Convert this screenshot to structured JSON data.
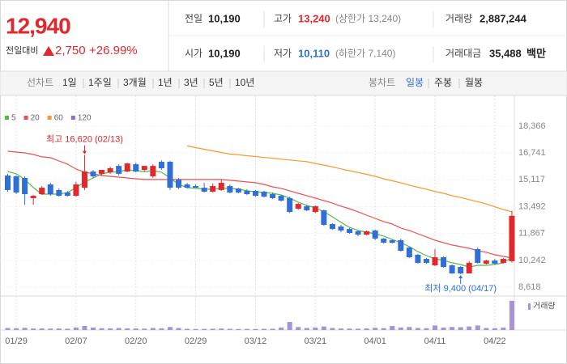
{
  "header": {
    "price": "12,940",
    "change_label": "전일대비",
    "change": "2,750",
    "change_pct": "+26.99%"
  },
  "stats": {
    "rows": [
      [
        {
          "label": "전일",
          "value": "10,190"
        },
        {
          "label": "고가",
          "value": "13,240",
          "note": "(상한가 13,240)"
        },
        {
          "label": "거래량",
          "value": "2,887,244"
        }
      ],
      [
        {
          "label": "시가",
          "value": "10,190"
        },
        {
          "label": "저가",
          "value": "10,110",
          "note": "(하한가 7,140)"
        },
        {
          "label": "거래대금",
          "value": "35,488",
          "unit": "백만"
        }
      ]
    ]
  },
  "tabs": {
    "line_label": "선차트",
    "line_periods": [
      "1일",
      "1주일",
      "3개월",
      "1년",
      "3년",
      "5년",
      "10년"
    ],
    "candle_label": "봉차트",
    "candle_periods": [
      "일봉",
      "주봉",
      "월봉"
    ],
    "selected": "일봉"
  },
  "chart_data": {
    "type": "candlestick",
    "categories": [
      null,
      "01/29",
      null,
      null,
      null,
      null,
      null,
      null,
      "02/07",
      null,
      null,
      null,
      null,
      null,
      null,
      "02/20",
      null,
      null,
      null,
      null,
      null,
      null,
      "02/29",
      null,
      null,
      null,
      null,
      null,
      null,
      "03/12",
      null,
      null,
      null,
      null,
      null,
      null,
      "03/21",
      null,
      null,
      null,
      null,
      null,
      null,
      "04/01",
      null,
      null,
      null,
      null,
      null,
      null,
      "04/11",
      null,
      null,
      null,
      null,
      null,
      null,
      "04/22",
      null,
      null
    ],
    "open": [
      15380,
      15330,
      15230,
      14010,
      14250,
      14840,
      14500,
      14350,
      14150,
      14640,
      15620,
      15480,
      15570,
      15960,
      15620,
      16060,
      15720,
      15330,
      16210,
      16210,
      15130,
      14840,
      14740,
      14640,
      14400,
      14500,
      14740,
      14590,
      14450,
      14450,
      14400,
      14250,
      14150,
      14010,
      13370,
      13520,
      13170,
      13270,
      12440,
      12290,
      12140,
      12000,
      11800,
      12050,
      11560,
      11460,
      11460,
      11020,
      10580,
      10330,
      9940,
      10430,
      9940,
      9840,
      9450,
      10920,
      10040,
      10230,
      10090,
      10190
    ],
    "high": [
      15480,
      15380,
      15330,
      14200,
      14740,
      14940,
      14600,
      14450,
      15000,
      16620,
      15720,
      15720,
      15920,
      16060,
      16160,
      16160,
      15960,
      16060,
      16300,
      16260,
      15230,
      14940,
      14840,
      14940,
      14900,
      15130,
      14840,
      14640,
      14550,
      14500,
      14450,
      14350,
      14200,
      14100,
      13710,
      13610,
      13570,
      13320,
      12490,
      12390,
      12200,
      12050,
      12050,
      12100,
      11600,
      11500,
      11560,
      11070,
      10630,
      10380,
      10920,
      10480,
      9990,
      9890,
      10200,
      11020,
      10280,
      10330,
      10380,
      13240
    ],
    "low": [
      14400,
      14250,
      13600,
      13610,
      14200,
      14150,
      14100,
      14100,
      14100,
      14500,
      15230,
      15380,
      15480,
      15380,
      15570,
      15570,
      15620,
      15230,
      15720,
      14500,
      14550,
      14590,
      14640,
      14350,
      14350,
      14450,
      14300,
      14300,
      14200,
      14100,
      14050,
      13950,
      13800,
      13100,
      13300,
      13220,
      13100,
      12340,
      12090,
      11950,
      11850,
      11700,
      11750,
      11460,
      11260,
      11260,
      10770,
      10380,
      10040,
      10040,
      9890,
      9790,
      9420,
      9400,
      9450,
      10040,
      9990,
      9990,
      10040,
      10110
    ],
    "close": [
      14500,
      14350,
      14250,
      14150,
      14640,
      14250,
      14150,
      14150,
      14840,
      15620,
      15330,
      15720,
      15820,
      15480,
      16110,
      15620,
      15960,
      15960,
      15820,
      14640,
      14640,
      14640,
      14640,
      14400,
      14740,
      14940,
      14350,
      14350,
      14250,
      14150,
      14100,
      14010,
      13860,
      13170,
      13660,
      13270,
      13520,
      12390,
      12140,
      12050,
      11900,
      11800,
      12000,
      11560,
      11310,
      11310,
      10820,
      10430,
      10090,
      10090,
      10430,
      9840,
      9450,
      9450,
      10090,
      10090,
      10230,
      10040,
      10330,
      12940
    ],
    "volume": [
      200000,
      180000,
      220000,
      150000,
      160000,
      140000,
      150000,
      130000,
      250000,
      400000,
      250000,
      180000,
      170000,
      200000,
      160000,
      150000,
      140000,
      200000,
      170000,
      300000,
      200000,
      120000,
      100000,
      110000,
      130000,
      150000,
      120000,
      100000,
      110000,
      100000,
      120000,
      130000,
      250000,
      800000,
      300000,
      200000,
      250000,
      350000,
      200000,
      150000,
      140000,
      130000,
      160000,
      220000,
      180000,
      400000,
      250000,
      300000,
      200000,
      180000,
      450000,
      250000,
      300000,
      280000,
      350000,
      450000,
      200000,
      180000,
      250000,
      2887244
    ],
    "up_color": "#e0282e",
    "down_color": "#2f6fd6",
    "volume_color": "#a793d8",
    "ylim": [
      8275,
      19150
    ],
    "yticks": [
      {
        "value": 18366,
        "label": "18,366"
      },
      {
        "value": 16741,
        "label": "16,741"
      },
      {
        "value": 15117,
        "label": "15,117"
      },
      {
        "value": 13492,
        "label": "13,492"
      },
      {
        "value": 11867,
        "label": "11,867"
      },
      {
        "value": 10242,
        "label": "10,242"
      },
      {
        "value": 8618,
        "label": "8,618"
      }
    ],
    "volume_ylim": [
      0,
      3200000
    ],
    "volume_label": "거래량",
    "grid": true,
    "series": [
      {
        "name": "5",
        "color": "#57b846",
        "values": [
          15620,
          15480,
          15140,
          14650,
          14250,
          14250,
          14250,
          14350,
          14650,
          14990,
          15230,
          15480,
          15580,
          15620,
          15720,
          15670,
          15620,
          15670,
          15580,
          15230,
          14840,
          14650,
          14600,
          14550,
          14550,
          14600,
          14600,
          14550,
          14450,
          14400,
          14350,
          14300,
          14200,
          14010,
          13760,
          13570,
          13420,
          13180,
          12880,
          12540,
          12240,
          12050,
          11950,
          11850,
          11710,
          11510,
          11310,
          11070,
          10770,
          10530,
          10330,
          10240,
          10090,
          9990,
          9840,
          9940,
          9940,
          9990,
          10090,
          10430
        ]
      },
      {
        "name": "20",
        "color": "#e8524f",
        "values": [
          16850,
          16800,
          16750,
          16650,
          16510,
          16460,
          16260,
          16070,
          15770,
          15580,
          15480,
          15380,
          15330,
          15280,
          15230,
          15180,
          15140,
          15140,
          15140,
          15140,
          15140,
          15140,
          15140,
          15140,
          15140,
          15140,
          15090,
          15040,
          14990,
          14940,
          14840,
          14690,
          14600,
          14450,
          14300,
          14160,
          14010,
          13860,
          13710,
          13520,
          13370,
          13180,
          12980,
          12780,
          12590,
          12440,
          12200,
          12050,
          11850,
          11660,
          11460,
          11310,
          11170,
          11070,
          10970,
          10820,
          10730,
          10580,
          10480,
          10380
        ]
      },
      {
        "name": "60",
        "color": "#f39a2d",
        "values": [
          null,
          null,
          null,
          null,
          null,
          null,
          null,
          null,
          null,
          null,
          null,
          null,
          null,
          null,
          null,
          null,
          null,
          null,
          null,
          null,
          null,
          17170,
          17070,
          16970,
          16870,
          16770,
          16680,
          16630,
          16580,
          16530,
          16470,
          16430,
          16370,
          16320,
          16270,
          16220,
          16110,
          16010,
          15900,
          15780,
          15670,
          15560,
          15450,
          15330,
          15180,
          15060,
          14940,
          14800,
          14670,
          14550,
          14410,
          14300,
          14160,
          14050,
          13920,
          13790,
          13660,
          13480,
          13320,
          13170
        ]
      },
      {
        "name": "120",
        "color": "#8e6cc8"
      }
    ],
    "annotations": {
      "high": "최고 16,620 (02/13)",
      "low": "최저 9,400 (04/17)"
    }
  }
}
